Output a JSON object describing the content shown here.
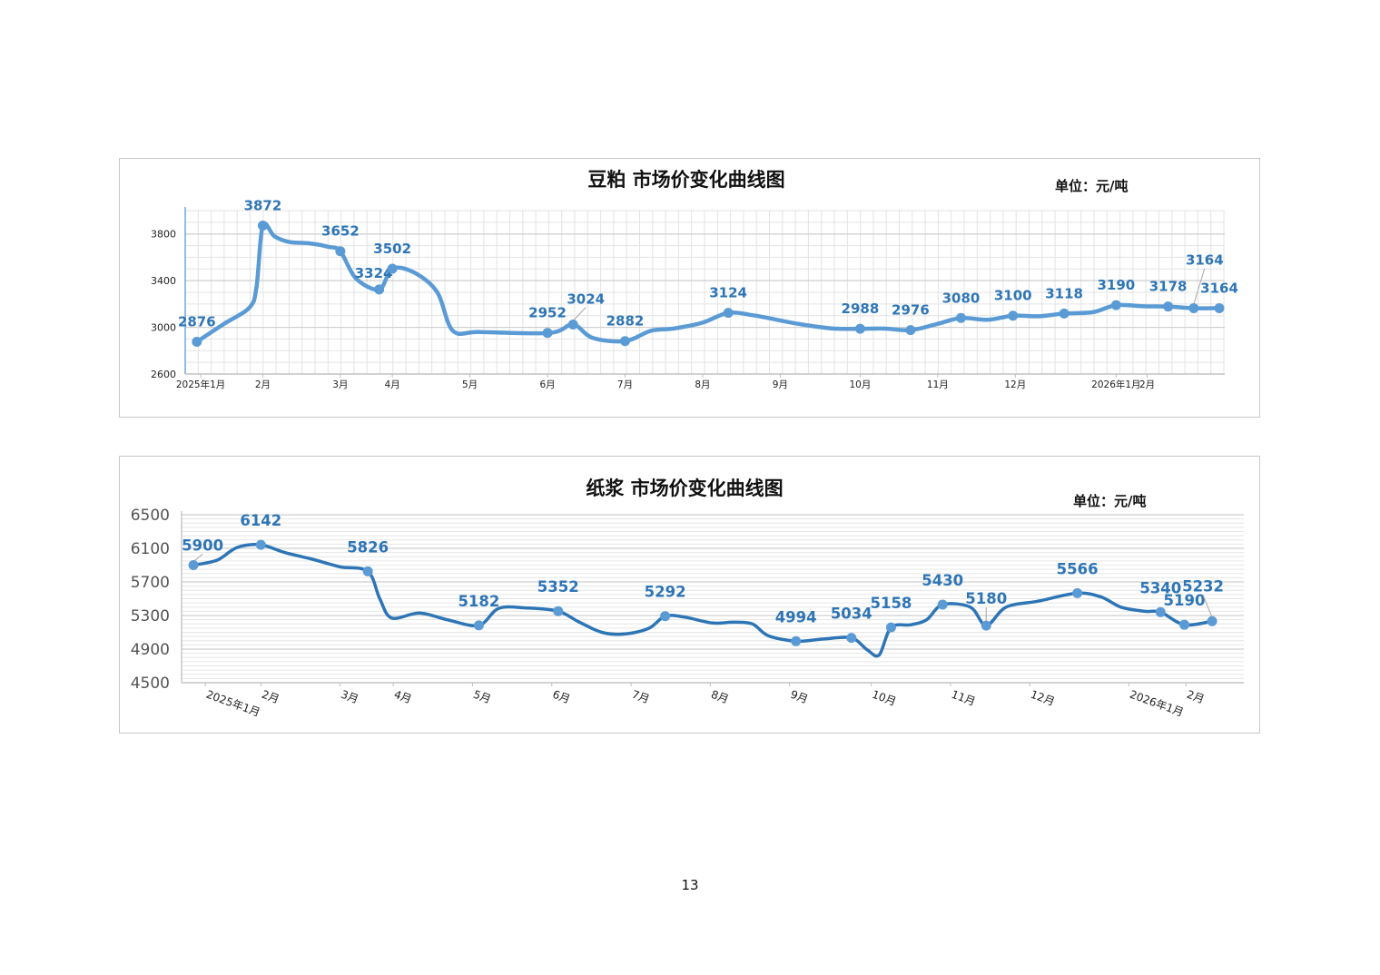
{
  "page": {
    "number": "13"
  },
  "chart_data": [
    {
      "type": "line",
      "title": "豆粕 市场价变化曲线图",
      "unit_label": "单位：元/吨",
      "xlabel": "",
      "ylabel": "",
      "ylim": [
        2600,
        4000
      ],
      "yticks": [
        2600,
        3000,
        3400,
        3800
      ],
      "grid": true,
      "color": "#5b9bd5",
      "x_range": [
        0,
        13.4
      ],
      "x_ticks": [
        {
          "x": 0.2,
          "label": "2025年1月"
        },
        {
          "x": 1,
          "label": "2月"
        },
        {
          "x": 2,
          "label": "3月"
        },
        {
          "x": 2.67,
          "label": "4月"
        },
        {
          "x": 3.67,
          "label": "5月"
        },
        {
          "x": 4.67,
          "label": "6月"
        },
        {
          "x": 5.67,
          "label": "7月"
        },
        {
          "x": 6.67,
          "label": "8月"
        },
        {
          "x": 7.67,
          "label": "9月"
        },
        {
          "x": 8.7,
          "label": "10月"
        },
        {
          "x": 9.7,
          "label": "11月"
        },
        {
          "x": 10.7,
          "label": "12月"
        },
        {
          "x": 12,
          "label": "2026年1月"
        },
        {
          "x": 12.4,
          "label": "2月"
        }
      ],
      "line": [
        [
          0.15,
          2876
        ],
        [
          0.5,
          3030
        ],
        [
          0.83,
          3170
        ],
        [
          0.92,
          3350
        ],
        [
          1.0,
          3872
        ],
        [
          1.15,
          3780
        ],
        [
          1.35,
          3730
        ],
        [
          1.6,
          3720
        ],
        [
          1.85,
          3690
        ],
        [
          2.0,
          3652
        ],
        [
          2.2,
          3420
        ],
        [
          2.5,
          3324
        ],
        [
          2.67,
          3502
        ],
        [
          2.95,
          3470
        ],
        [
          3.25,
          3300
        ],
        [
          3.45,
          2970
        ],
        [
          3.8,
          2960
        ],
        [
          4.7,
          2952
        ],
        [
          5.0,
          3024
        ],
        [
          5.25,
          2910
        ],
        [
          5.67,
          2882
        ],
        [
          6.0,
          2970
        ],
        [
          6.3,
          2990
        ],
        [
          6.67,
          3040
        ],
        [
          7.0,
          3124
        ],
        [
          7.35,
          3100
        ],
        [
          7.9,
          3030
        ],
        [
          8.35,
          2990
        ],
        [
          8.7,
          2988
        ],
        [
          9.0,
          2990
        ],
        [
          9.35,
          2976
        ],
        [
          9.7,
          3030
        ],
        [
          10.0,
          3080
        ],
        [
          10.35,
          3065
        ],
        [
          10.67,
          3100
        ],
        [
          11.0,
          3095
        ],
        [
          11.33,
          3118
        ],
        [
          11.7,
          3130
        ],
        [
          12.0,
          3190
        ],
        [
          12.35,
          3180
        ],
        [
          12.67,
          3178
        ],
        [
          13.0,
          3164
        ],
        [
          13.33,
          3164
        ]
      ],
      "points": [
        {
          "x": 0.15,
          "value": 2876,
          "label": "2876",
          "dx": 0,
          "dy": -17
        },
        {
          "x": 1.0,
          "value": 3872,
          "label": "3872",
          "dx": 0,
          "dy": -17
        },
        {
          "x": 2.0,
          "value": 3652,
          "label": "3652",
          "dx": 0,
          "dy": -17
        },
        {
          "x": 2.5,
          "value": 3324,
          "label": "3324",
          "dx": -6,
          "dy": -13
        },
        {
          "x": 2.67,
          "value": 3502,
          "label": "3502",
          "dx": 0,
          "dy": -17
        },
        {
          "x": 4.67,
          "value": 2952,
          "label": "2952",
          "dx": 0,
          "dy": -17
        },
        {
          "x": 5.0,
          "value": 3024,
          "label": "3024",
          "dx": 14,
          "dy": -23
        },
        {
          "x": 5.67,
          "value": 2882,
          "label": "2882",
          "dx": 0,
          "dy": -17
        },
        {
          "x": 7.0,
          "value": 3124,
          "label": "3124",
          "dx": 0,
          "dy": -17
        },
        {
          "x": 8.7,
          "value": 2988,
          "label": "2988",
          "dx": 0,
          "dy": -17
        },
        {
          "x": 9.35,
          "value": 2976,
          "label": "2976",
          "dx": 0,
          "dy": -17
        },
        {
          "x": 10.0,
          "value": 3080,
          "label": "3080",
          "dx": 0,
          "dy": -17
        },
        {
          "x": 10.67,
          "value": 3100,
          "label": "3100",
          "dx": 0,
          "dy": -17
        },
        {
          "x": 11.33,
          "value": 3118,
          "label": "3118",
          "dx": 0,
          "dy": -17
        },
        {
          "x": 12.0,
          "value": 3190,
          "label": "3190",
          "dx": 0,
          "dy": -17
        },
        {
          "x": 12.67,
          "value": 3178,
          "label": "3178",
          "dx": 0,
          "dy": -17
        },
        {
          "x": 13.0,
          "value": 3164,
          "label": "3164",
          "dx": 12,
          "dy": -48
        },
        {
          "x": 13.33,
          "value": 3164,
          "label": "3164",
          "dx": 0,
          "dy": -17
        }
      ]
    },
    {
      "type": "line",
      "title": "纸浆 市场价变化曲线图",
      "unit_label": "单位：元/吨",
      "xlabel": "",
      "ylabel": "",
      "ylim": [
        4500,
        6500
      ],
      "yticks": [
        4500,
        4900,
        5300,
        5700,
        6100,
        6500
      ],
      "grid": true,
      "color": "#2e75b6",
      "marker_color": "#5b9bd5",
      "x_range": [
        0,
        13.4
      ],
      "x_ticks": [
        {
          "x": 0.3,
          "label": "2025年1月"
        },
        {
          "x": 1.0,
          "label": "2月"
        },
        {
          "x": 2.0,
          "label": "3月"
        },
        {
          "x": 2.67,
          "label": "4月"
        },
        {
          "x": 3.67,
          "label": "5月"
        },
        {
          "x": 4.67,
          "label": "6月"
        },
        {
          "x": 5.67,
          "label": "7月"
        },
        {
          "x": 6.67,
          "label": "8月"
        },
        {
          "x": 7.67,
          "label": "9月"
        },
        {
          "x": 8.7,
          "label": "10月"
        },
        {
          "x": 9.7,
          "label": "11月"
        },
        {
          "x": 10.7,
          "label": "12月"
        },
        {
          "x": 11.95,
          "label": "2026年1月"
        },
        {
          "x": 12.67,
          "label": "2月"
        }
      ],
      "line": [
        [
          0.15,
          5900
        ],
        [
          0.45,
          5960
        ],
        [
          0.7,
          6110
        ],
        [
          1.0,
          6142
        ],
        [
          1.3,
          6050
        ],
        [
          1.65,
          5970
        ],
        [
          2.0,
          5880
        ],
        [
          2.35,
          5826
        ],
        [
          2.5,
          5500
        ],
        [
          2.65,
          5270
        ],
        [
          3.0,
          5330
        ],
        [
          3.35,
          5250
        ],
        [
          3.75,
          5182
        ],
        [
          4.0,
          5385
        ],
        [
          4.35,
          5390
        ],
        [
          4.75,
          5352
        ],
        [
          5.0,
          5230
        ],
        [
          5.3,
          5100
        ],
        [
          5.6,
          5080
        ],
        [
          5.9,
          5150
        ],
        [
          6.1,
          5292
        ],
        [
          6.35,
          5280
        ],
        [
          6.7,
          5210
        ],
        [
          6.95,
          5220
        ],
        [
          7.2,
          5200
        ],
        [
          7.4,
          5060
        ],
        [
          7.75,
          4994
        ],
        [
          8.1,
          5020
        ],
        [
          8.45,
          5034
        ],
        [
          8.65,
          4890
        ],
        [
          8.8,
          4830
        ],
        [
          8.95,
          5158
        ],
        [
          9.2,
          5190
        ],
        [
          9.4,
          5250
        ],
        [
          9.6,
          5430
        ],
        [
          9.95,
          5400
        ],
        [
          10.15,
          5180
        ],
        [
          10.4,
          5400
        ],
        [
          10.8,
          5470
        ],
        [
          11.3,
          5566
        ],
        [
          11.6,
          5520
        ],
        [
          11.85,
          5400
        ],
        [
          12.15,
          5350
        ],
        [
          12.35,
          5340
        ],
        [
          12.65,
          5190
        ],
        [
          13.0,
          5232
        ]
      ],
      "points": [
        {
          "x": 0.15,
          "value": 5900,
          "label": "5900",
          "dx": 10,
          "dy": -16
        },
        {
          "x": 1.0,
          "value": 6142,
          "label": "6142",
          "dx": 0,
          "dy": -21
        },
        {
          "x": 2.35,
          "value": 5826,
          "label": "5826",
          "dx": 0,
          "dy": -21
        },
        {
          "x": 3.75,
          "value": 5182,
          "label": "5182",
          "dx": 0,
          "dy": -21
        },
        {
          "x": 4.75,
          "value": 5352,
          "label": "5352",
          "dx": 0,
          "dy": -21
        },
        {
          "x": 6.1,
          "value": 5292,
          "label": "5292",
          "dx": 0,
          "dy": -21
        },
        {
          "x": 7.75,
          "value": 4994,
          "label": "4994",
          "dx": 0,
          "dy": -21
        },
        {
          "x": 8.45,
          "value": 5034,
          "label": "5034",
          "dx": 0,
          "dy": -21
        },
        {
          "x": 8.95,
          "value": 5158,
          "label": "5158",
          "dx": 0,
          "dy": -21
        },
        {
          "x": 9.6,
          "value": 5430,
          "label": "5430",
          "dx": 0,
          "dy": -21
        },
        {
          "x": 10.15,
          "value": 5180,
          "label": "5180",
          "dx": 0,
          "dy": -24
        },
        {
          "x": 11.3,
          "value": 5566,
          "label": "5566",
          "dx": 0,
          "dy": -21
        },
        {
          "x": 12.35,
          "value": 5340,
          "label": "5340",
          "dx": 0,
          "dy": -21
        },
        {
          "x": 12.65,
          "value": 5190,
          "label": "5190",
          "dx": 0,
          "dy": -21
        },
        {
          "x": 13.0,
          "value": 5232,
          "label": "5232",
          "dx": -10,
          "dy": -33
        }
      ]
    }
  ]
}
